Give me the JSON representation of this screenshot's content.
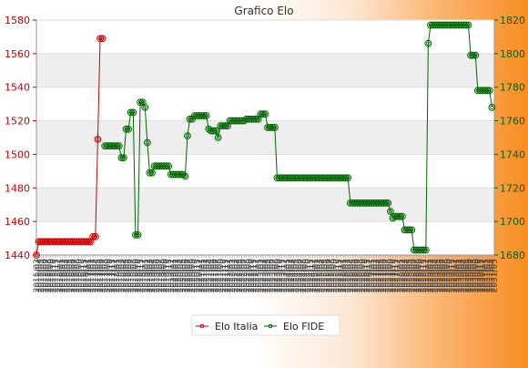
{
  "chart_data": {
    "type": "line",
    "title": "Grafico Elo",
    "grid": "horizontal bands",
    "legend_position": "bottom-center",
    "colors": {
      "left_axis": "#cc0000",
      "right_axis": "#006600",
      "series_italia": "#cc0000",
      "series_fide": "#006600",
      "band": "#eeeeee"
    },
    "y_left": {
      "range": [
        1440,
        1580
      ],
      "ticks": [
        1440,
        1460,
        1480,
        1500,
        1520,
        1540,
        1560,
        1580
      ]
    },
    "y_right": {
      "range": [
        1680,
        1820
      ],
      "ticks": [
        1680,
        1700,
        1720,
        1740,
        1760,
        1780,
        1800,
        1820
      ]
    },
    "series": [
      {
        "name": "Elo Italia",
        "axis": "left",
        "start_index": 0,
        "values": [
          1440,
          1448,
          1448,
          1448,
          1448,
          1448,
          1448,
          1448,
          1448,
          1448,
          1448,
          1448,
          1448,
          1448,
          1448,
          1448,
          1448,
          1448,
          1448,
          1448,
          1448,
          1448,
          1448,
          1448,
          1451,
          1451,
          1509,
          1569,
          1569
        ]
      },
      {
        "name": "Elo FIDE",
        "axis": "right",
        "start_index": 29,
        "values": [
          1745,
          1745,
          1745,
          1745,
          1745,
          1745,
          1745,
          1738,
          1738,
          1755,
          1755,
          1765,
          1765,
          1692,
          1692,
          1771,
          1771,
          1768,
          1747,
          1729,
          1729,
          1733,
          1733,
          1733,
          1733,
          1733,
          1733,
          1733,
          1728,
          1728,
          1728,
          1728,
          1728,
          1728,
          1727,
          1751,
          1761,
          1761,
          1763,
          1763,
          1763,
          1763,
          1763,
          1763,
          1755,
          1754,
          1754,
          1754,
          1750,
          1757,
          1757,
          1757,
          1757,
          1760,
          1760,
          1760,
          1760,
          1760,
          1760,
          1760,
          1761,
          1761,
          1761,
          1761,
          1761,
          1761,
          1764,
          1764,
          1764,
          1756,
          1756,
          1756,
          1756,
          1726,
          1726,
          1726,
          1726,
          1726,
          1726,
          1726,
          1726,
          1726,
          1726,
          1726,
          1726,
          1726,
          1726,
          1726,
          1726,
          1726,
          1726,
          1726,
          1726,
          1726,
          1726,
          1726,
          1726,
          1726,
          1726,
          1726,
          1726,
          1726,
          1726,
          1726,
          1711,
          1711,
          1711,
          1711,
          1711,
          1711,
          1711,
          1711,
          1711,
          1711,
          1711,
          1711,
          1711,
          1711,
          1711,
          1711,
          1711,
          1706,
          1702,
          1703,
          1703,
          1703,
          1703,
          1695,
          1695,
          1695,
          1695,
          1683,
          1683,
          1683,
          1683,
          1683,
          1683,
          1806,
          1817,
          1817,
          1817,
          1817,
          1817,
          1817,
          1817,
          1817,
          1817,
          1817,
          1817,
          1817,
          1817,
          1817,
          1817,
          1817,
          1817,
          1799,
          1799,
          1799,
          1778,
          1778,
          1778,
          1778,
          1778,
          1778,
          1768
        ]
      }
    ],
    "x_tick_labels": [
      "2015/03",
      "2015/04",
      "2015/05",
      "2015/06",
      "2015/07",
      "2015/08",
      "2015/09",
      "2015/10",
      "2015/11",
      "2015/12",
      "2016/01",
      "2016/02",
      "2016/03",
      "2016/04",
      "2016/05",
      "2016/06",
      "2016/07",
      "2016/08",
      "2016/09",
      "2016/10",
      "2016/11",
      "2016/12",
      "2017/01",
      "2017/02",
      "2017/03",
      "2017/04",
      "2017/05",
      "2017/06",
      "2017/07",
      "2017/08",
      "2017/09",
      "2017/10",
      "2017/11",
      "2017/12",
      "2018/01",
      "2018/02",
      "2018/03",
      "2018/04",
      "2018/05",
      "2018/06",
      "2018/07",
      "2018/08",
      "2018/09",
      "2018/10",
      "2018/11",
      "2018/12",
      "2019/01",
      "2019/02",
      "2019/03",
      "2019/04",
      "2019/05",
      "2019/06",
      "2019/07",
      "2019/08",
      "2019/09",
      "2019/10",
      "2019/11",
      "2019/12",
      "2020/01",
      "2020/02",
      "2020/03",
      "2020/04",
      "2020/05",
      "2020/06",
      "2020/07",
      "2020/08",
      "2020/09",
      "2020/10",
      "2020/11",
      "2020/12",
      "2021/01",
      "2021/02",
      "2021/03",
      "2021/04",
      "2021/05",
      "2021/06",
      "2021/07",
      "2021/08",
      "2021/09",
      "2021/10",
      "2021/11",
      "2021/12",
      "2022/01",
      "2022/02",
      "2022/03",
      "2022/04",
      "2022/05",
      "2022/06",
      "2022/07",
      "2022/08",
      "2022/09",
      "2022/10",
      "2022/11",
      "2022/12",
      "2023/01",
      "2023/02",
      "2023/03",
      "2023/04",
      "2023/05",
      "2023/06",
      "2023/07",
      "2023/08",
      "2023/09",
      "2023/10",
      "2023/11",
      "2023/12",
      "2024/01",
      "2024/02",
      "2024/03",
      "2024/04",
      "2024/05",
      "2024/06",
      "2024/07",
      "2024/08",
      "2024/09",
      "2024/10",
      "2024/11",
      "2024/12",
      "2025/01",
      "2025/02",
      "2025/03",
      "2025/04",
      "2025/05",
      "2025/06",
      "2025/07",
      "2025/08",
      "2025/09",
      "2025/10",
      "2025/11",
      "2025/12",
      "2026/01",
      "2026/02",
      "2026/03",
      "2026/04",
      "2026/05",
      "2026/06",
      "2026/07",
      "2026/08",
      "2026/09",
      "2026/10",
      "2026/11",
      "2026/12",
      "2027/01",
      "2027/02",
      "2027/03",
      "2027/04",
      "2027/05",
      "2027/06",
      "2027/07",
      "2027/08",
      "2027/09",
      "2027/10",
      "2027/11",
      "2027/12",
      "2028/01",
      "2028/02",
      "2028/03",
      "2028/04",
      "2028/05",
      "2028/06",
      "2028/07",
      "2028/08",
      "2028/09",
      "2028/10",
      "2028/11",
      "2028/12",
      "2029/01",
      "2029/02",
      "2029/03",
      "2029/04",
      "2029/05",
      "2029/06",
      "2029/07",
      "2029/08",
      "2029/09",
      "2029/10",
      "2029/11",
      "2029/12",
      "2030/01",
      "2030/02",
      "2030/03",
      "2030/04",
      "2030/05",
      "2030/06",
      "2030/07",
      "2030/08",
      "2030/09",
      "2030/10",
      "2030/11",
      "2030/12",
      "2031/01",
      "2031/02",
      "2031/03",
      "2031/04",
      "2031/05"
    ]
  }
}
